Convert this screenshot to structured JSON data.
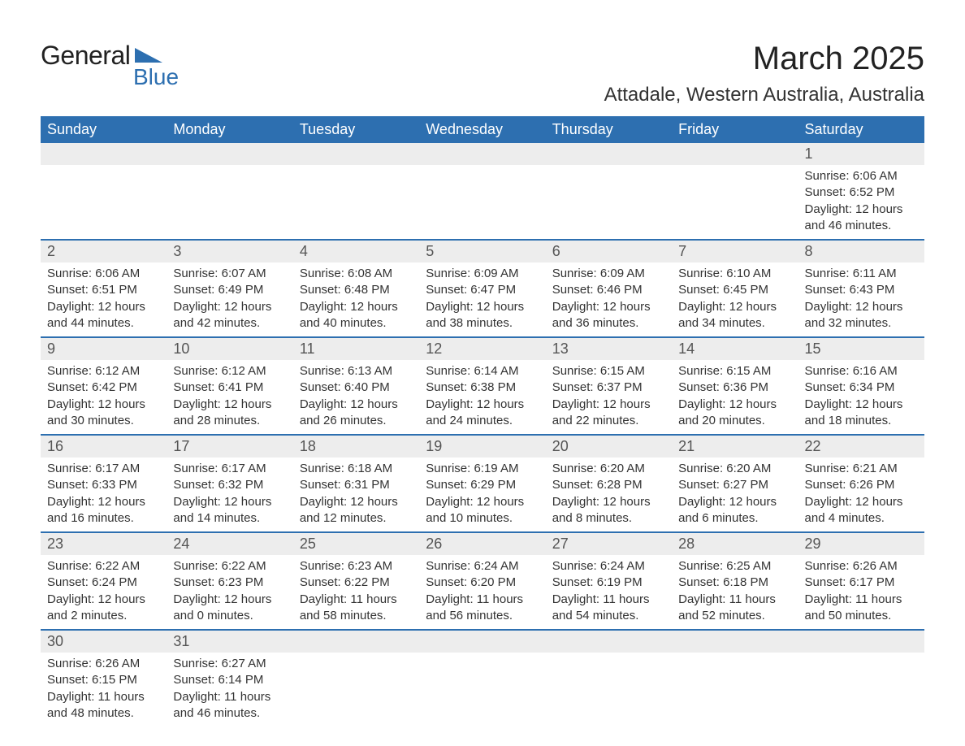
{
  "logo": {
    "text1": "General",
    "text2": "Blue",
    "shape_color": "#2d6fb0"
  },
  "title": "March 2025",
  "location": "Attadale, Western Australia, Australia",
  "styling": {
    "header_bg": "#2d6fb0",
    "header_fg": "#ffffff",
    "daynum_bg": "#ededed",
    "daynum_fg": "#555555",
    "row_divider": "#2d6fb0",
    "body_text": "#333333",
    "month_title_fontsize": 40,
    "location_fontsize": 24,
    "header_fontsize": 18,
    "daynum_fontsize": 18,
    "content_fontsize": 15
  },
  "weekdays": [
    "Sunday",
    "Monday",
    "Tuesday",
    "Wednesday",
    "Thursday",
    "Friday",
    "Saturday"
  ],
  "weeks": [
    [
      {
        "day": "",
        "sunrise": "",
        "sunset": "",
        "daylight": ""
      },
      {
        "day": "",
        "sunrise": "",
        "sunset": "",
        "daylight": ""
      },
      {
        "day": "",
        "sunrise": "",
        "sunset": "",
        "daylight": ""
      },
      {
        "day": "",
        "sunrise": "",
        "sunset": "",
        "daylight": ""
      },
      {
        "day": "",
        "sunrise": "",
        "sunset": "",
        "daylight": ""
      },
      {
        "day": "",
        "sunrise": "",
        "sunset": "",
        "daylight": ""
      },
      {
        "day": "1",
        "sunrise": "Sunrise: 6:06 AM",
        "sunset": "Sunset: 6:52 PM",
        "daylight": "Daylight: 12 hours and 46 minutes."
      }
    ],
    [
      {
        "day": "2",
        "sunrise": "Sunrise: 6:06 AM",
        "sunset": "Sunset: 6:51 PM",
        "daylight": "Daylight: 12 hours and 44 minutes."
      },
      {
        "day": "3",
        "sunrise": "Sunrise: 6:07 AM",
        "sunset": "Sunset: 6:49 PM",
        "daylight": "Daylight: 12 hours and 42 minutes."
      },
      {
        "day": "4",
        "sunrise": "Sunrise: 6:08 AM",
        "sunset": "Sunset: 6:48 PM",
        "daylight": "Daylight: 12 hours and 40 minutes."
      },
      {
        "day": "5",
        "sunrise": "Sunrise: 6:09 AM",
        "sunset": "Sunset: 6:47 PM",
        "daylight": "Daylight: 12 hours and 38 minutes."
      },
      {
        "day": "6",
        "sunrise": "Sunrise: 6:09 AM",
        "sunset": "Sunset: 6:46 PM",
        "daylight": "Daylight: 12 hours and 36 minutes."
      },
      {
        "day": "7",
        "sunrise": "Sunrise: 6:10 AM",
        "sunset": "Sunset: 6:45 PM",
        "daylight": "Daylight: 12 hours and 34 minutes."
      },
      {
        "day": "8",
        "sunrise": "Sunrise: 6:11 AM",
        "sunset": "Sunset: 6:43 PM",
        "daylight": "Daylight: 12 hours and 32 minutes."
      }
    ],
    [
      {
        "day": "9",
        "sunrise": "Sunrise: 6:12 AM",
        "sunset": "Sunset: 6:42 PM",
        "daylight": "Daylight: 12 hours and 30 minutes."
      },
      {
        "day": "10",
        "sunrise": "Sunrise: 6:12 AM",
        "sunset": "Sunset: 6:41 PM",
        "daylight": "Daylight: 12 hours and 28 minutes."
      },
      {
        "day": "11",
        "sunrise": "Sunrise: 6:13 AM",
        "sunset": "Sunset: 6:40 PM",
        "daylight": "Daylight: 12 hours and 26 minutes."
      },
      {
        "day": "12",
        "sunrise": "Sunrise: 6:14 AM",
        "sunset": "Sunset: 6:38 PM",
        "daylight": "Daylight: 12 hours and 24 minutes."
      },
      {
        "day": "13",
        "sunrise": "Sunrise: 6:15 AM",
        "sunset": "Sunset: 6:37 PM",
        "daylight": "Daylight: 12 hours and 22 minutes."
      },
      {
        "day": "14",
        "sunrise": "Sunrise: 6:15 AM",
        "sunset": "Sunset: 6:36 PM",
        "daylight": "Daylight: 12 hours and 20 minutes."
      },
      {
        "day": "15",
        "sunrise": "Sunrise: 6:16 AM",
        "sunset": "Sunset: 6:34 PM",
        "daylight": "Daylight: 12 hours and 18 minutes."
      }
    ],
    [
      {
        "day": "16",
        "sunrise": "Sunrise: 6:17 AM",
        "sunset": "Sunset: 6:33 PM",
        "daylight": "Daylight: 12 hours and 16 minutes."
      },
      {
        "day": "17",
        "sunrise": "Sunrise: 6:17 AM",
        "sunset": "Sunset: 6:32 PM",
        "daylight": "Daylight: 12 hours and 14 minutes."
      },
      {
        "day": "18",
        "sunrise": "Sunrise: 6:18 AM",
        "sunset": "Sunset: 6:31 PM",
        "daylight": "Daylight: 12 hours and 12 minutes."
      },
      {
        "day": "19",
        "sunrise": "Sunrise: 6:19 AM",
        "sunset": "Sunset: 6:29 PM",
        "daylight": "Daylight: 12 hours and 10 minutes."
      },
      {
        "day": "20",
        "sunrise": "Sunrise: 6:20 AM",
        "sunset": "Sunset: 6:28 PM",
        "daylight": "Daylight: 12 hours and 8 minutes."
      },
      {
        "day": "21",
        "sunrise": "Sunrise: 6:20 AM",
        "sunset": "Sunset: 6:27 PM",
        "daylight": "Daylight: 12 hours and 6 minutes."
      },
      {
        "day": "22",
        "sunrise": "Sunrise: 6:21 AM",
        "sunset": "Sunset: 6:26 PM",
        "daylight": "Daylight: 12 hours and 4 minutes."
      }
    ],
    [
      {
        "day": "23",
        "sunrise": "Sunrise: 6:22 AM",
        "sunset": "Sunset: 6:24 PM",
        "daylight": "Daylight: 12 hours and 2 minutes."
      },
      {
        "day": "24",
        "sunrise": "Sunrise: 6:22 AM",
        "sunset": "Sunset: 6:23 PM",
        "daylight": "Daylight: 12 hours and 0 minutes."
      },
      {
        "day": "25",
        "sunrise": "Sunrise: 6:23 AM",
        "sunset": "Sunset: 6:22 PM",
        "daylight": "Daylight: 11 hours and 58 minutes."
      },
      {
        "day": "26",
        "sunrise": "Sunrise: 6:24 AM",
        "sunset": "Sunset: 6:20 PM",
        "daylight": "Daylight: 11 hours and 56 minutes."
      },
      {
        "day": "27",
        "sunrise": "Sunrise: 6:24 AM",
        "sunset": "Sunset: 6:19 PM",
        "daylight": "Daylight: 11 hours and 54 minutes."
      },
      {
        "day": "28",
        "sunrise": "Sunrise: 6:25 AM",
        "sunset": "Sunset: 6:18 PM",
        "daylight": "Daylight: 11 hours and 52 minutes."
      },
      {
        "day": "29",
        "sunrise": "Sunrise: 6:26 AM",
        "sunset": "Sunset: 6:17 PM",
        "daylight": "Daylight: 11 hours and 50 minutes."
      }
    ],
    [
      {
        "day": "30",
        "sunrise": "Sunrise: 6:26 AM",
        "sunset": "Sunset: 6:15 PM",
        "daylight": "Daylight: 11 hours and 48 minutes."
      },
      {
        "day": "31",
        "sunrise": "Sunrise: 6:27 AM",
        "sunset": "Sunset: 6:14 PM",
        "daylight": "Daylight: 11 hours and 46 minutes."
      },
      {
        "day": "",
        "sunrise": "",
        "sunset": "",
        "daylight": ""
      },
      {
        "day": "",
        "sunrise": "",
        "sunset": "",
        "daylight": ""
      },
      {
        "day": "",
        "sunrise": "",
        "sunset": "",
        "daylight": ""
      },
      {
        "day": "",
        "sunrise": "",
        "sunset": "",
        "daylight": ""
      },
      {
        "day": "",
        "sunrise": "",
        "sunset": "",
        "daylight": ""
      }
    ]
  ]
}
